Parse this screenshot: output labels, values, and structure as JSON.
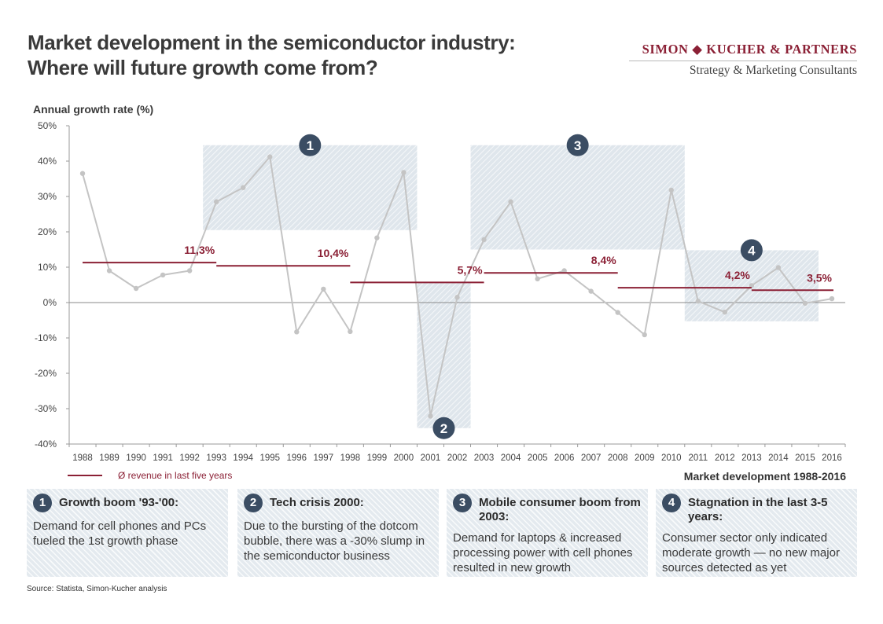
{
  "title": {
    "line1": "Market development in the semiconductor industry:",
    "line2": "Where will future growth come from?"
  },
  "brand": {
    "name": "SIMON ◆ KUCHER & PARTNERS",
    "tagline": "Strategy & Marketing Consultants"
  },
  "colors": {
    "growth_line": "#c4c4c4",
    "average_line": "#8b2035",
    "highlight_fill": "#dfe6ec",
    "marker_fill": "#3b4d63"
  },
  "chart_data": {
    "type": "line",
    "ylabel": "Annual growth rate (%)",
    "xlabel": "",
    "x": [
      "1988",
      "1989",
      "1990",
      "1991",
      "1992",
      "1993",
      "1994",
      "1995",
      "1996",
      "1997",
      "1998",
      "1999",
      "2000",
      "2001",
      "2002",
      "2003",
      "2004",
      "2005",
      "2006",
      "2007",
      "2008",
      "2009",
      "2010",
      "2011",
      "2012",
      "2013",
      "2014",
      "2015",
      "2016"
    ],
    "series": [
      {
        "values": [
          36.5,
          9,
          4,
          7.8,
          9,
          28.5,
          32.5,
          41.2,
          -8.3,
          3.8,
          -8.2,
          18.3,
          36.8,
          -32.1,
          1.5,
          17.8,
          28.5,
          6.7,
          9,
          3.2,
          -2.8,
          -9.1,
          31.8,
          0.4,
          -2.7,
          4.8,
          9.9,
          -0.2,
          1.1
        ]
      }
    ],
    "averages": [
      {
        "label": "11,3%",
        "value": 11.3,
        "from": "1988",
        "to": "1993"
      },
      {
        "label": "10,4%",
        "value": 10.4,
        "from": "1993",
        "to": "1998"
      },
      {
        "label": "5,7%",
        "value": 5.7,
        "from": "1998",
        "to": "2003"
      },
      {
        "label": "8,4%",
        "value": 8.4,
        "from": "2003",
        "to": "2008"
      },
      {
        "label": "4,2%",
        "value": 4.2,
        "from": "2008",
        "to": "2013"
      },
      {
        "label": "3,5%",
        "value": 3.5,
        "from": "2013",
        "to": "2016"
      }
    ],
    "highlight_regions": [
      {
        "marker": "1",
        "from": "1993",
        "to": "2001",
        "y_range": [
          20.5,
          44.5
        ]
      },
      {
        "marker": "2",
        "from": "2001",
        "to": "2003",
        "y_range": [
          -35.5,
          5.8
        ]
      },
      {
        "marker": "3",
        "from": "2003",
        "to": "2011",
        "y_range": [
          15,
          44.5
        ]
      },
      {
        "marker": "4",
        "from": "2011",
        "to": "2016",
        "y_range": [
          -5.3,
          14.8
        ]
      }
    ],
    "yticks": [
      50,
      40,
      30,
      20,
      10,
      0,
      -10,
      -20,
      -30,
      -40
    ],
    "ytick_labels": [
      "50%",
      "40%",
      "30%",
      "20%",
      "10%",
      "0%",
      "-10%",
      "-20%",
      "-30%",
      "-40%"
    ],
    "ylim": [
      -40,
      50
    ],
    "grid": false,
    "zero_line": true,
    "legend": "bottom-left"
  },
  "legend": {
    "average_label": "Ø revenue  in last five years"
  },
  "period_label": "Market development 1988-2016",
  "boxes": [
    {
      "number": "1",
      "title": "Growth boom '93-'00:",
      "text": "Demand for cell phones and PCs fueled the 1st growth phase"
    },
    {
      "number": "2",
      "title": "Tech crisis 2000:",
      "text": "Due to the bursting of the dotcom bubble, there was a -30% slump in the semiconductor business"
    },
    {
      "number": "3",
      "title": "Mobile consumer boom from 2003:",
      "text": "Demand for laptops & increased processing power with cell phones resulted in new growth"
    },
    {
      "number": "4",
      "title": "Stagnation in the last 3-5 years:",
      "text": "Consumer sector only indicated moderate growth — no new major sources detected as yet"
    }
  ],
  "source": "Source: Statista, Simon-Kucher analysis"
}
